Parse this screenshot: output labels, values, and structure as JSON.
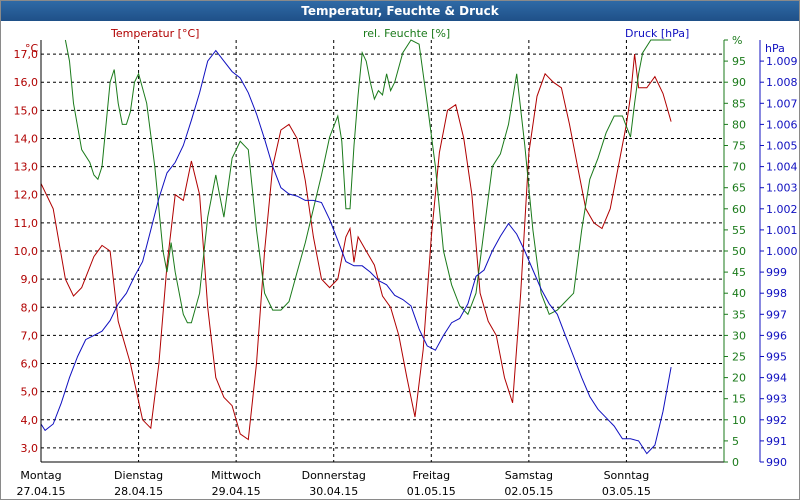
{
  "chart_data": {
    "type": "line",
    "title": "Temperatur, Feuchte & Druck",
    "x_labels": [
      {
        "day": "Montag",
        "date": "27.04.15"
      },
      {
        "day": "Dienstag",
        "date": "28.04.15"
      },
      {
        "day": "Mittwoch",
        "date": "29.04.15"
      },
      {
        "day": "Donnerstag",
        "date": "30.04.15"
      },
      {
        "day": "Freitag",
        "date": "01.05.15"
      },
      {
        "day": "Samstag",
        "date": "02.05.15"
      },
      {
        "day": "Sonntag",
        "date": "03.05.15"
      }
    ],
    "x_hours_total": 168,
    "axes": {
      "temperature": {
        "unit": "°C",
        "label": "Temperatur [°C]",
        "min": 2.5,
        "max": 17.5,
        "ticks": [
          "3,0",
          "4,0",
          "5,0",
          "6,0",
          "7,0",
          "8,0",
          "9,0",
          "10,0",
          "11,0",
          "12,0",
          "13,0",
          "14,0",
          "15,0",
          "16,0",
          "17,0"
        ]
      },
      "humidity": {
        "unit": "%",
        "label": "rel. Feuchte [%]",
        "min": 0,
        "max": 100,
        "ticks": [
          "0",
          "5",
          "10",
          "15",
          "20",
          "25",
          "30",
          "35",
          "40",
          "45",
          "50",
          "55",
          "60",
          "65",
          "70",
          "75",
          "80",
          "85",
          "90",
          "95",
          "%"
        ]
      },
      "pressure": {
        "unit": "hPa",
        "label": "Druck [hPa]",
        "min": 990,
        "max": 1010,
        "ticks": [
          "990",
          "991",
          "992",
          "993",
          "994",
          "995",
          "996",
          "997",
          "998",
          "999",
          "1.000",
          "1.001",
          "1.002",
          "1.003",
          "1.004",
          "1.005",
          "1.006",
          "1.007",
          "1.008",
          "1.009"
        ]
      }
    },
    "series": [
      {
        "name": "Temperatur [°C]",
        "axis": "temperature",
        "color": "#b00000",
        "points": [
          [
            0,
            12.4
          ],
          [
            3,
            11.5
          ],
          [
            6,
            9.0
          ],
          [
            8,
            8.4
          ],
          [
            10,
            8.7
          ],
          [
            13,
            9.8
          ],
          [
            15,
            10.2
          ],
          [
            17,
            10.0
          ],
          [
            19,
            7.5
          ],
          [
            22,
            6.0
          ],
          [
            25,
            4.0
          ],
          [
            27,
            3.7
          ],
          [
            29,
            6.0
          ],
          [
            31,
            9.5
          ],
          [
            33,
            12.0
          ],
          [
            35,
            11.8
          ],
          [
            37,
            13.2
          ],
          [
            39,
            12.0
          ],
          [
            41,
            8.0
          ],
          [
            43,
            5.5
          ],
          [
            45,
            4.8
          ],
          [
            47,
            4.5
          ],
          [
            49,
            3.5
          ],
          [
            51,
            3.3
          ],
          [
            53,
            6.0
          ],
          [
            55,
            10.0
          ],
          [
            57,
            13.0
          ],
          [
            59,
            14.3
          ],
          [
            61,
            14.5
          ],
          [
            63,
            14.0
          ],
          [
            65,
            12.5
          ],
          [
            67,
            10.5
          ],
          [
            69,
            9.0
          ],
          [
            71,
            8.7
          ],
          [
            73,
            9.0
          ],
          [
            75,
            10.5
          ],
          [
            76,
            10.8
          ],
          [
            77,
            9.6
          ],
          [
            78,
            10.5
          ],
          [
            80,
            10.0
          ],
          [
            82,
            9.5
          ],
          [
            84,
            8.4
          ],
          [
            86,
            8.0
          ],
          [
            88,
            7.0
          ],
          [
            90,
            5.5
          ],
          [
            92,
            4.1
          ],
          [
            94,
            6.5
          ],
          [
            96,
            10.5
          ],
          [
            98,
            13.5
          ],
          [
            100,
            15.0
          ],
          [
            102,
            15.2
          ],
          [
            104,
            14.0
          ],
          [
            106,
            12.0
          ],
          [
            108,
            8.5
          ],
          [
            110,
            7.5
          ],
          [
            112,
            7.0
          ],
          [
            114,
            5.5
          ],
          [
            116,
            4.6
          ],
          [
            118,
            8.5
          ],
          [
            120,
            13.5
          ],
          [
            122,
            15.5
          ],
          [
            124,
            16.3
          ],
          [
            126,
            16.0
          ],
          [
            128,
            15.8
          ],
          [
            130,
            14.5
          ],
          [
            132,
            13.0
          ],
          [
            134,
            11.5
          ],
          [
            136,
            11.0
          ],
          [
            138,
            10.8
          ],
          [
            140,
            11.5
          ],
          [
            142,
            13.0
          ],
          [
            144,
            14.5
          ],
          [
            145,
            15.5
          ],
          [
            146,
            17.0
          ],
          [
            147,
            15.8
          ],
          [
            149,
            15.8
          ],
          [
            151,
            16.2
          ],
          [
            153,
            15.6
          ],
          [
            155,
            14.6
          ]
        ]
      },
      {
        "name": "rel. Feuchte [%]",
        "axis": "humidity",
        "color": "#1a7a1a",
        "points": [
          [
            6,
            100
          ],
          [
            7,
            95
          ],
          [
            8,
            85
          ],
          [
            10,
            74
          ],
          [
            12,
            71
          ],
          [
            13,
            68
          ],
          [
            14,
            67
          ],
          [
            15,
            70
          ],
          [
            17,
            90
          ],
          [
            18,
            93
          ],
          [
            19,
            85
          ],
          [
            20,
            80
          ],
          [
            21,
            80
          ],
          [
            22,
            83
          ],
          [
            23,
            90
          ],
          [
            24,
            92
          ],
          [
            26,
            85
          ],
          [
            28,
            70
          ],
          [
            30,
            50
          ],
          [
            31,
            45
          ],
          [
            32,
            52
          ],
          [
            33,
            45
          ],
          [
            35,
            35
          ],
          [
            36,
            33
          ],
          [
            37,
            33
          ],
          [
            39,
            40
          ],
          [
            41,
            58
          ],
          [
            43,
            68
          ],
          [
            45,
            58
          ],
          [
            47,
            72
          ],
          [
            49,
            76
          ],
          [
            51,
            74
          ],
          [
            53,
            55
          ],
          [
            55,
            40
          ],
          [
            57,
            36
          ],
          [
            59,
            36
          ],
          [
            61,
            38
          ],
          [
            63,
            45
          ],
          [
            65,
            52
          ],
          [
            67,
            60
          ],
          [
            69,
            68
          ],
          [
            71,
            77
          ],
          [
            73,
            82
          ],
          [
            74,
            76
          ],
          [
            75,
            60
          ],
          [
            76,
            60
          ],
          [
            77,
            75
          ],
          [
            78,
            87
          ],
          [
            79,
            97
          ],
          [
            80,
            95
          ],
          [
            81,
            90
          ],
          [
            82,
            86
          ],
          [
            83,
            88
          ],
          [
            84,
            87
          ],
          [
            85,
            92
          ],
          [
            86,
            88
          ],
          [
            87,
            90
          ],
          [
            89,
            97
          ],
          [
            91,
            100
          ],
          [
            93,
            99
          ],
          [
            95,
            85
          ],
          [
            97,
            70
          ],
          [
            99,
            50
          ],
          [
            101,
            42
          ],
          [
            103,
            37
          ],
          [
            105,
            35
          ],
          [
            107,
            40
          ],
          [
            109,
            55
          ],
          [
            111,
            70
          ],
          [
            113,
            73
          ],
          [
            115,
            80
          ],
          [
            117,
            92
          ],
          [
            119,
            75
          ],
          [
            121,
            55
          ],
          [
            123,
            40
          ],
          [
            125,
            35
          ],
          [
            127,
            36
          ],
          [
            129,
            38
          ],
          [
            131,
            40
          ],
          [
            133,
            55
          ],
          [
            135,
            67
          ],
          [
            137,
            72
          ],
          [
            139,
            78
          ],
          [
            141,
            82
          ],
          [
            143,
            82
          ],
          [
            145,
            77
          ],
          [
            146,
            85
          ],
          [
            147,
            92
          ],
          [
            148,
            97
          ],
          [
            150,
            100
          ],
          [
            155,
            100
          ]
        ]
      },
      {
        "name": "Druck [hPa]",
        "axis": "pressure",
        "color": "#1010c0",
        "points": [
          [
            0,
            991.8
          ],
          [
            1,
            991.5
          ],
          [
            3,
            991.8
          ],
          [
            5,
            992.8
          ],
          [
            7,
            994.0
          ],
          [
            9,
            995.0
          ],
          [
            11,
            995.8
          ],
          [
            13,
            996.0
          ],
          [
            15,
            996.2
          ],
          [
            17,
            996.7
          ],
          [
            19,
            997.5
          ],
          [
            21,
            998.0
          ],
          [
            23,
            998.8
          ],
          [
            25,
            999.5
          ],
          [
            27,
            1001.0
          ],
          [
            29,
            1002.5
          ],
          [
            31,
            1003.7
          ],
          [
            33,
            1004.2
          ],
          [
            35,
            1005.0
          ],
          [
            37,
            1006.2
          ],
          [
            39,
            1007.5
          ],
          [
            41,
            1009.0
          ],
          [
            43,
            1009.5
          ],
          [
            45,
            1009.0
          ],
          [
            47,
            1008.5
          ],
          [
            49,
            1008.2
          ],
          [
            51,
            1007.5
          ],
          [
            53,
            1006.5
          ],
          [
            55,
            1005.3
          ],
          [
            57,
            1004.0
          ],
          [
            59,
            1003.0
          ],
          [
            61,
            1002.7
          ],
          [
            63,
            1002.6
          ],
          [
            65,
            1002.4
          ],
          [
            67,
            1002.4
          ],
          [
            69,
            1002.3
          ],
          [
            71,
            1001.5
          ],
          [
            73,
            1000.5
          ],
          [
            75,
            999.5
          ],
          [
            77,
            999.3
          ],
          [
            79,
            999.3
          ],
          [
            81,
            999.0
          ],
          [
            83,
            998.6
          ],
          [
            85,
            998.4
          ],
          [
            87,
            997.9
          ],
          [
            89,
            997.7
          ],
          [
            91,
            997.4
          ],
          [
            93,
            996.3
          ],
          [
            95,
            995.5
          ],
          [
            97,
            995.3
          ],
          [
            99,
            996.0
          ],
          [
            101,
            996.6
          ],
          [
            103,
            996.8
          ],
          [
            105,
            997.5
          ],
          [
            107,
            998.8
          ],
          [
            109,
            999.1
          ],
          [
            111,
            1000.0
          ],
          [
            113,
            1000.7
          ],
          [
            115,
            1001.3
          ],
          [
            117,
            1000.8
          ],
          [
            119,
            1000.0
          ],
          [
            121,
            999.1
          ],
          [
            123,
            998.2
          ],
          [
            125,
            997.5
          ],
          [
            127,
            997.0
          ],
          [
            129,
            996.0
          ],
          [
            131,
            995.0
          ],
          [
            133,
            994.0
          ],
          [
            135,
            993.1
          ],
          [
            137,
            992.5
          ],
          [
            139,
            992.1
          ],
          [
            141,
            991.7
          ],
          [
            143,
            991.1
          ],
          [
            145,
            991.1
          ],
          [
            147,
            991.0
          ],
          [
            149,
            990.4
          ],
          [
            151,
            990.8
          ],
          [
            153,
            992.4
          ],
          [
            155,
            994.5
          ]
        ]
      }
    ]
  }
}
